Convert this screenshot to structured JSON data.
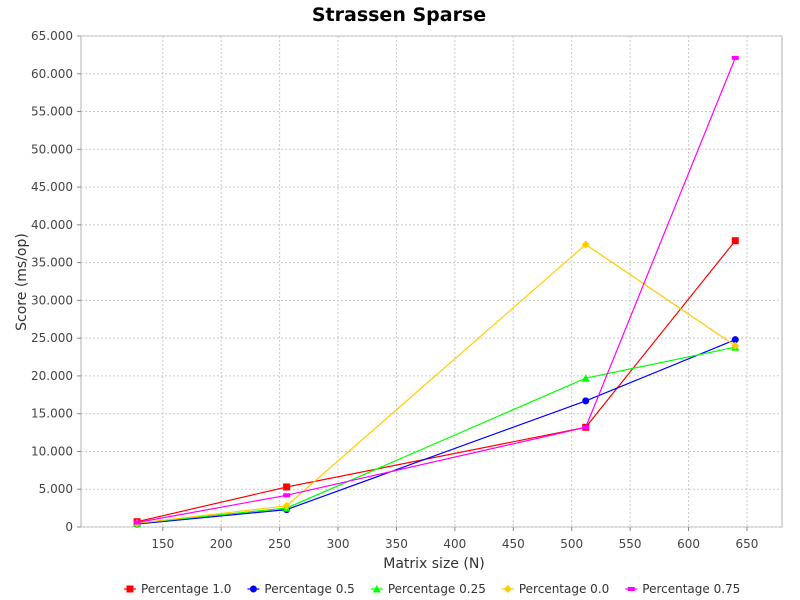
{
  "chart_data": {
    "type": "line",
    "title": "Strassen Sparse",
    "xlabel": "Matrix size (N)",
    "ylabel": "Score (ms/op)",
    "xlim": [
      80,
      680
    ],
    "ylim": [
      0,
      65000
    ],
    "xticks": [
      150,
      200,
      250,
      300,
      350,
      400,
      450,
      500,
      550,
      600,
      650
    ],
    "yticks": [
      0,
      5000,
      10000,
      15000,
      20000,
      25000,
      30000,
      35000,
      40000,
      45000,
      50000,
      55000,
      60000,
      65000
    ],
    "ytick_labels": [
      "0",
      "5.000",
      "10.000",
      "15.000",
      "20.000",
      "25.000",
      "30.000",
      "35.000",
      "40.000",
      "45.000",
      "50.000",
      "55.000",
      "60.000",
      "65.000"
    ],
    "grid": true,
    "legend_position": "bottom",
    "x": [
      128,
      256,
      512,
      640
    ],
    "series": [
      {
        "name": "Percentage 1.0",
        "color": "#ff0000",
        "marker": "square",
        "values": [
          700,
          5300,
          13200,
          37900
        ]
      },
      {
        "name": "Percentage 0.5",
        "color": "#0000ff",
        "marker": "circle",
        "values": [
          400,
          2300,
          16700,
          24800
        ]
      },
      {
        "name": "Percentage 0.25",
        "color": "#00ff00",
        "marker": "triangle",
        "values": [
          500,
          2500,
          19700,
          23800
        ]
      },
      {
        "name": "Percentage 0.0",
        "color": "#ffcc00",
        "marker": "diamond",
        "values": [
          500,
          2800,
          37400,
          24000
        ]
      },
      {
        "name": "Percentage 0.75",
        "color": "#ff00ff",
        "marker": "rect",
        "values": [
          600,
          4200,
          13200,
          62100
        ]
      }
    ]
  }
}
